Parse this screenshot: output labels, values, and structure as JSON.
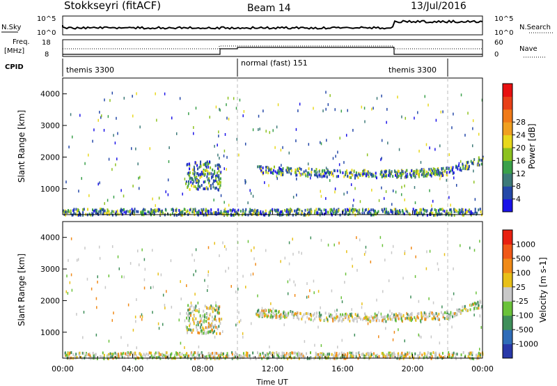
{
  "header": {
    "station": "Stokkseyri (fitACF)",
    "beam": "Beam 14",
    "date": "13/Jul/2016"
  },
  "noise_panel": {
    "left_label": "N.Sky",
    "right_label": "N.Search",
    "left_ticks": [
      "10^5",
      "10^0"
    ],
    "right_ticks": [
      "10^5",
      "10^0"
    ]
  },
  "freq_panel": {
    "left_label_top": "Freq.",
    "left_label_bottom": "[MHz]",
    "right_label": "Nave",
    "left_ticks": [
      "18",
      "8"
    ],
    "right_ticks": [
      "60",
      "0"
    ]
  },
  "cpid": {
    "label": "CPID",
    "segments": [
      {
        "label": "themis 3300",
        "start_h": 0,
        "end_h": 10
      },
      {
        "label": "normal (fast) 151",
        "start_h": 10,
        "end_h": 22
      },
      {
        "label": "themis 3300",
        "start_h": 22,
        "end_h": 24
      }
    ]
  },
  "time_axis": {
    "label": "Time UT",
    "ticks": [
      "00:00",
      "04:00",
      "08:00",
      "12:00",
      "16:00",
      "20:00",
      "00:00"
    ]
  },
  "power_panel": {
    "ylabel": "Slant Range [km]",
    "yticks": [
      "1000",
      "2000",
      "3000",
      "4000"
    ],
    "cbar_label": "Power [dB]",
    "cbar_ticks": [
      "4",
      "8",
      "12",
      "16",
      "20",
      "24",
      "28"
    ],
    "cbar_colors": [
      "#1a12e8",
      "#2448a8",
      "#3d7a78",
      "#3aa04a",
      "#8dc21f",
      "#e8d81c",
      "#f0a020",
      "#f07a18",
      "#e84018",
      "#e81010"
    ]
  },
  "velocity_panel": {
    "ylabel": "Slant Range [km]",
    "yticks": [
      "1000",
      "2000",
      "3000",
      "4000"
    ],
    "cbar_label": "Velocity [m s-1]",
    "cbar_ticks": [
      "1000",
      "500",
      "100",
      "25",
      "-25",
      "-100",
      "-500",
      "-1000"
    ],
    "cbar_colors": [
      "#2838a8",
      "#2f6cb8",
      "#3f8f5a",
      "#6ac23a",
      "#c8c8c8",
      "#e8c018",
      "#f08a18",
      "#f05818",
      "#e82010"
    ]
  },
  "chart_data": {
    "type": "heatmap",
    "x_range_hours": [
      0,
      24
    ],
    "y_range_km": [
      180,
      4500
    ],
    "vertical_markers_hours": [
      10,
      22
    ],
    "scatter_features": [
      {
        "name": "near-range band",
        "t_start": 0,
        "t_end": 24,
        "range_start_km": 200,
        "range_end_km": 400
      },
      {
        "name": "morning echoes",
        "t_start": 7.0,
        "t_end": 9.0,
        "range_start_km": 1000,
        "range_end_km": 1900
      },
      {
        "name": "evening arc",
        "t_start": 11.0,
        "t_end": 24.0,
        "range_start_km": 1300,
        "range_end_km": 2100
      }
    ]
  }
}
